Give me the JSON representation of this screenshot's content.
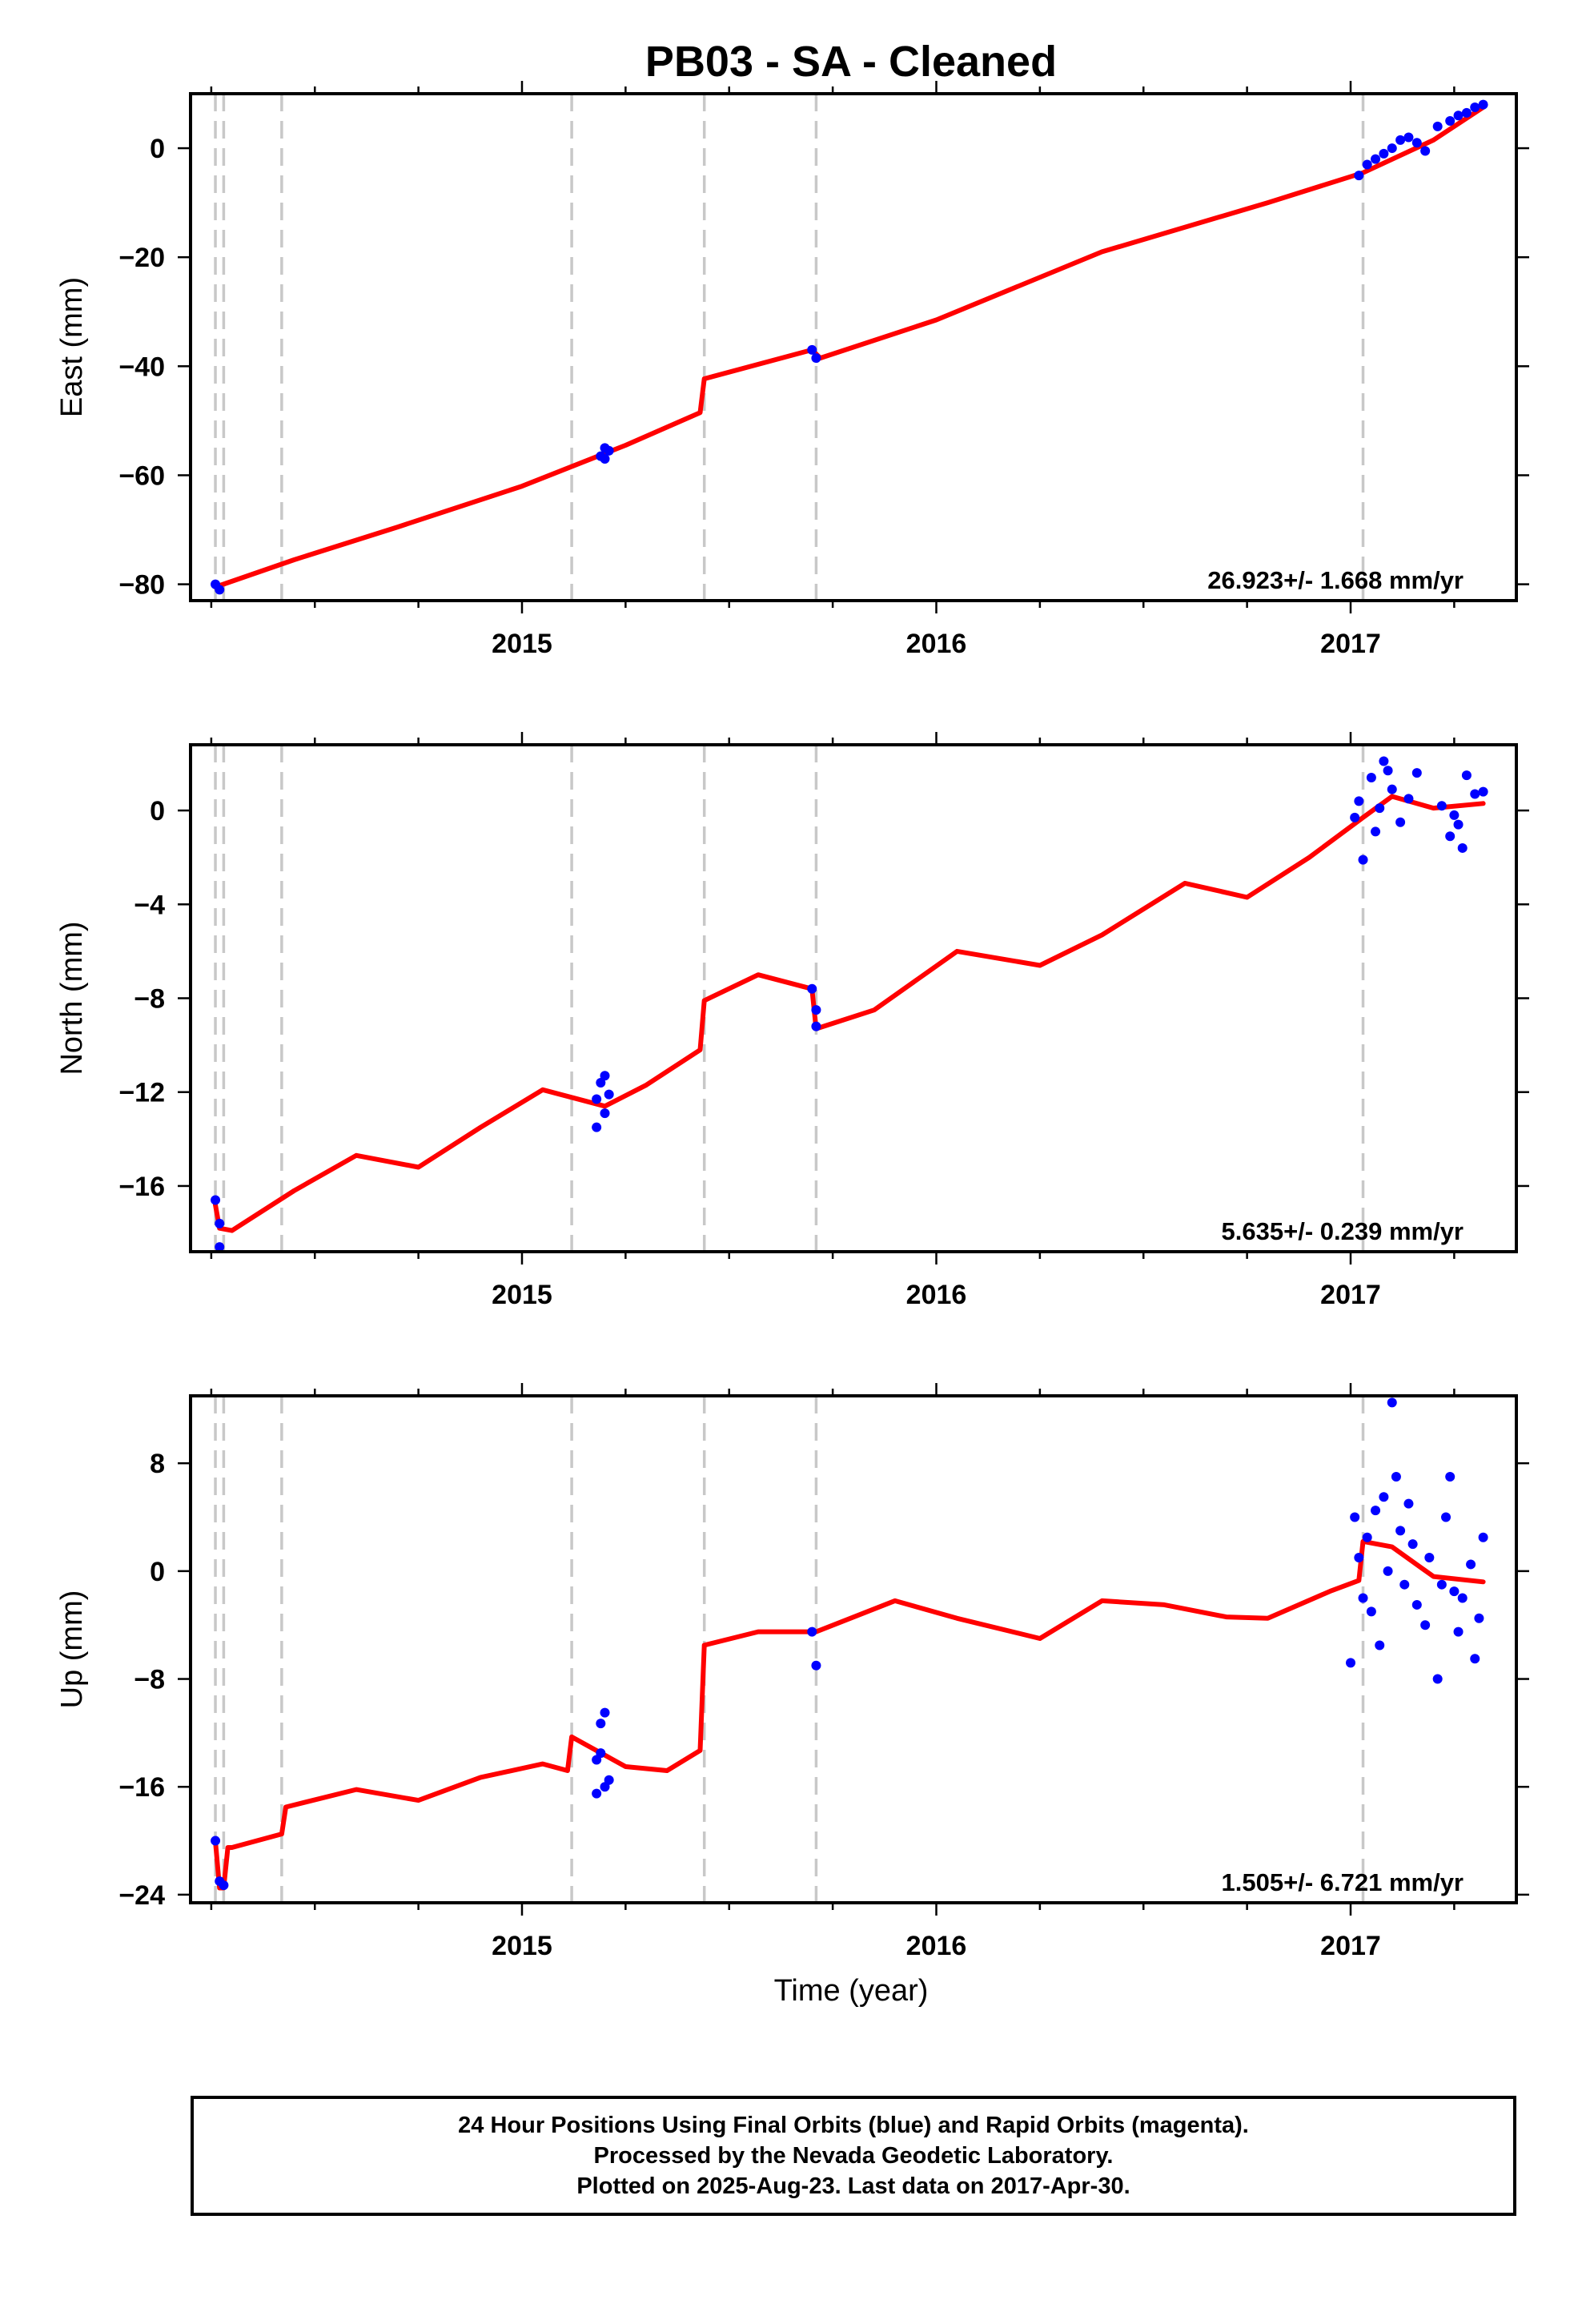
{
  "title": "PB03  - SA - Cleaned",
  "xlabel": "Time (year)",
  "x_tick_labels": [
    "2015",
    "2016",
    "2017"
  ],
  "footer": {
    "line1": "24 Hour Positions Using Final Orbits (blue) and Rapid Orbits (magenta).",
    "line2": "Processed by the Nevada Geodetic Laboratory.",
    "line3": "Plotted on 2025-Aug-23. Last data on 2017-Apr-30."
  },
  "colors": {
    "observations": "#0000ff",
    "model": "#ff0000",
    "step_lines": "#c8c8c8",
    "frame": "#000000"
  },
  "chart_data": [
    {
      "type": "scatter",
      "ylabel": "East (mm)",
      "rate_label": "26.923+/- 1.668 mm/yr",
      "xlim": [
        2014.2,
        2017.4
      ],
      "ylim": [
        -83,
        10
      ],
      "y_ticks": [
        0,
        -20,
        -40,
        -60,
        -80
      ],
      "grid": false,
      "step_epochs": [
        2014.26,
        2014.28,
        2014.42,
        2015.12,
        2015.44,
        2015.71,
        2017.03
      ],
      "model_line": {
        "x": [
          2014.26,
          2014.45,
          2014.7,
          2015.0,
          2015.25,
          2015.43,
          2015.44,
          2015.7,
          2015.72,
          2016.0,
          2016.4,
          2016.8,
          2017.03,
          2017.2,
          2017.32
        ],
        "y": [
          -80.5,
          -75.5,
          -69.5,
          -62.0,
          -54.5,
          -48.5,
          -42.3,
          -37.0,
          -38.5,
          -31.5,
          -19.0,
          -10.0,
          -4.5,
          1.5,
          7.5
        ]
      },
      "points": {
        "x": [
          2014.26,
          2014.27,
          2015.19,
          2015.2,
          2015.21,
          2015.2,
          2015.7,
          2015.71,
          2017.02,
          2017.04,
          2017.06,
          2017.08,
          2017.1,
          2017.12,
          2017.14,
          2017.16,
          2017.18,
          2017.21,
          2017.24,
          2017.26,
          2017.28,
          2017.3,
          2017.32
        ],
        "y": [
          -80.0,
          -81.0,
          -56.5,
          -55.0,
          -55.5,
          -57.0,
          -37.0,
          -38.5,
          -5.0,
          -3.0,
          -2.0,
          -1.0,
          0.0,
          1.5,
          2.0,
          1.0,
          -0.5,
          4.0,
          5.0,
          6.0,
          6.5,
          7.5,
          8.0
        ]
      }
    },
    {
      "type": "scatter",
      "ylabel": "North (mm)",
      "rate_label": "5.635+/- 0.239 mm/yr",
      "xlim": [
        2014.2,
        2017.4
      ],
      "ylim": [
        -18.8,
        2.8
      ],
      "y_ticks": [
        0,
        -4,
        -8,
        -12,
        -16
      ],
      "grid": false,
      "step_epochs": [
        2014.26,
        2014.28,
        2014.42,
        2015.12,
        2015.44,
        2015.71,
        2017.03
      ],
      "model_line": {
        "x": [
          2014.26,
          2014.27,
          2014.3,
          2014.45,
          2014.6,
          2014.75,
          2014.9,
          2015.05,
          2015.2,
          2015.3,
          2015.43,
          2015.44,
          2015.57,
          2015.7,
          2015.71,
          2015.85,
          2016.05,
          2016.25,
          2016.4,
          2016.6,
          2016.75,
          2016.9,
          2017.03,
          2017.1,
          2017.2,
          2017.32
        ],
        "y": [
          -16.8,
          -17.8,
          -17.9,
          -16.2,
          -14.7,
          -15.2,
          -13.5,
          -11.9,
          -12.6,
          -11.7,
          -10.2,
          -8.1,
          -7.0,
          -7.6,
          -9.3,
          -8.5,
          -6.0,
          -6.6,
          -5.3,
          -3.1,
          -3.7,
          -2.0,
          -0.3,
          0.6,
          0.1,
          0.3
        ]
      },
      "points": {
        "x": [
          2014.26,
          2014.27,
          2014.27,
          2015.18,
          2015.19,
          2015.2,
          2015.21,
          2015.18,
          2015.2,
          2015.7,
          2015.71,
          2015.71,
          2017.01,
          2017.02,
          2017.03,
          2017.05,
          2017.07,
          2017.08,
          2017.1,
          2017.12,
          2017.14,
          2017.16,
          2017.06,
          2017.09,
          2017.22,
          2017.24,
          2017.26,
          2017.28,
          2017.3,
          2017.32,
          2017.27,
          2017.25
        ],
        "y": [
          -16.6,
          -17.6,
          -18.6,
          -12.3,
          -11.6,
          -12.9,
          -12.1,
          -13.5,
          -11.3,
          -7.6,
          -9.2,
          -8.5,
          -0.3,
          0.4,
          -2.1,
          1.4,
          0.1,
          2.1,
          0.9,
          -0.5,
          0.5,
          1.6,
          -0.9,
          1.7,
          0.2,
          -1.1,
          -0.6,
          1.5,
          0.7,
          0.8,
          -1.6,
          -0.2
        ]
      }
    },
    {
      "type": "scatter",
      "ylabel": "Up (mm)",
      "rate_label": "1.505+/- 6.721 mm/yr",
      "xlim": [
        2014.2,
        2017.4
      ],
      "ylim": [
        -24.6,
        13
      ],
      "y_ticks": [
        8,
        0,
        -8,
        -16,
        -24
      ],
      "grid": false,
      "step_epochs": [
        2014.26,
        2014.28,
        2014.42,
        2015.12,
        2015.44,
        2015.71,
        2017.03
      ],
      "model_line": {
        "x": [
          2014.26,
          2014.27,
          2014.28,
          2014.29,
          2014.3,
          2014.42,
          2014.43,
          2014.6,
          2014.75,
          2014.9,
          2015.05,
          2015.11,
          2015.12,
          2015.25,
          2015.35,
          2015.43,
          2015.44,
          2015.57,
          2015.71,
          2015.9,
          2016.05,
          2016.25,
          2016.4,
          2016.55,
          2016.7,
          2016.8,
          2016.95,
          2017.02,
          2017.03,
          2017.1,
          2017.2,
          2017.32
        ],
        "y": [
          -20.0,
          -23.5,
          -23.5,
          -20.5,
          -20.5,
          -19.5,
          -17.5,
          -16.2,
          -17.0,
          -15.3,
          -14.3,
          -14.8,
          -12.3,
          -14.5,
          -14.8,
          -13.3,
          -5.5,
          -4.5,
          -4.5,
          -2.2,
          -3.5,
          -5.0,
          -2.2,
          -2.5,
          -3.4,
          -3.5,
          -1.5,
          -0.7,
          2.2,
          1.8,
          -0.4,
          -0.8
        ]
      },
      "points": {
        "x": [
          2014.26,
          2014.27,
          2014.28,
          2015.18,
          2015.19,
          2015.2,
          2015.21,
          2015.18,
          2015.2,
          2015.19,
          2015.7,
          2015.71,
          2017.0,
          2017.01,
          2017.02,
          2017.03,
          2017.04,
          2017.05,
          2017.06,
          2017.07,
          2017.08,
          2017.09,
          2017.1,
          2017.11,
          2017.12,
          2017.13,
          2017.14,
          2017.15,
          2017.16,
          2017.18,
          2017.19,
          2017.21,
          2017.23,
          2017.24,
          2017.25,
          2017.27,
          2017.29,
          2017.3,
          2017.31,
          2017.32,
          2017.22,
          2017.26
        ],
        "y": [
          -20.0,
          -23.0,
          -23.3,
          -14.0,
          -11.3,
          -16.0,
          -15.5,
          -16.5,
          -10.5,
          -13.5,
          -4.5,
          -7.0,
          -6.8,
          4.0,
          1.0,
          -2.0,
          2.5,
          -3.0,
          4.5,
          -5.5,
          5.5,
          0.0,
          12.5,
          7.0,
          3.0,
          -1.0,
          5.0,
          2.0,
          -2.5,
          -4.0,
          1.0,
          -8.0,
          4.0,
          7.0,
          -1.5,
          -2.0,
          0.5,
          -6.5,
          -3.5,
          2.5,
          -1.0,
          -4.5
        ]
      }
    }
  ]
}
